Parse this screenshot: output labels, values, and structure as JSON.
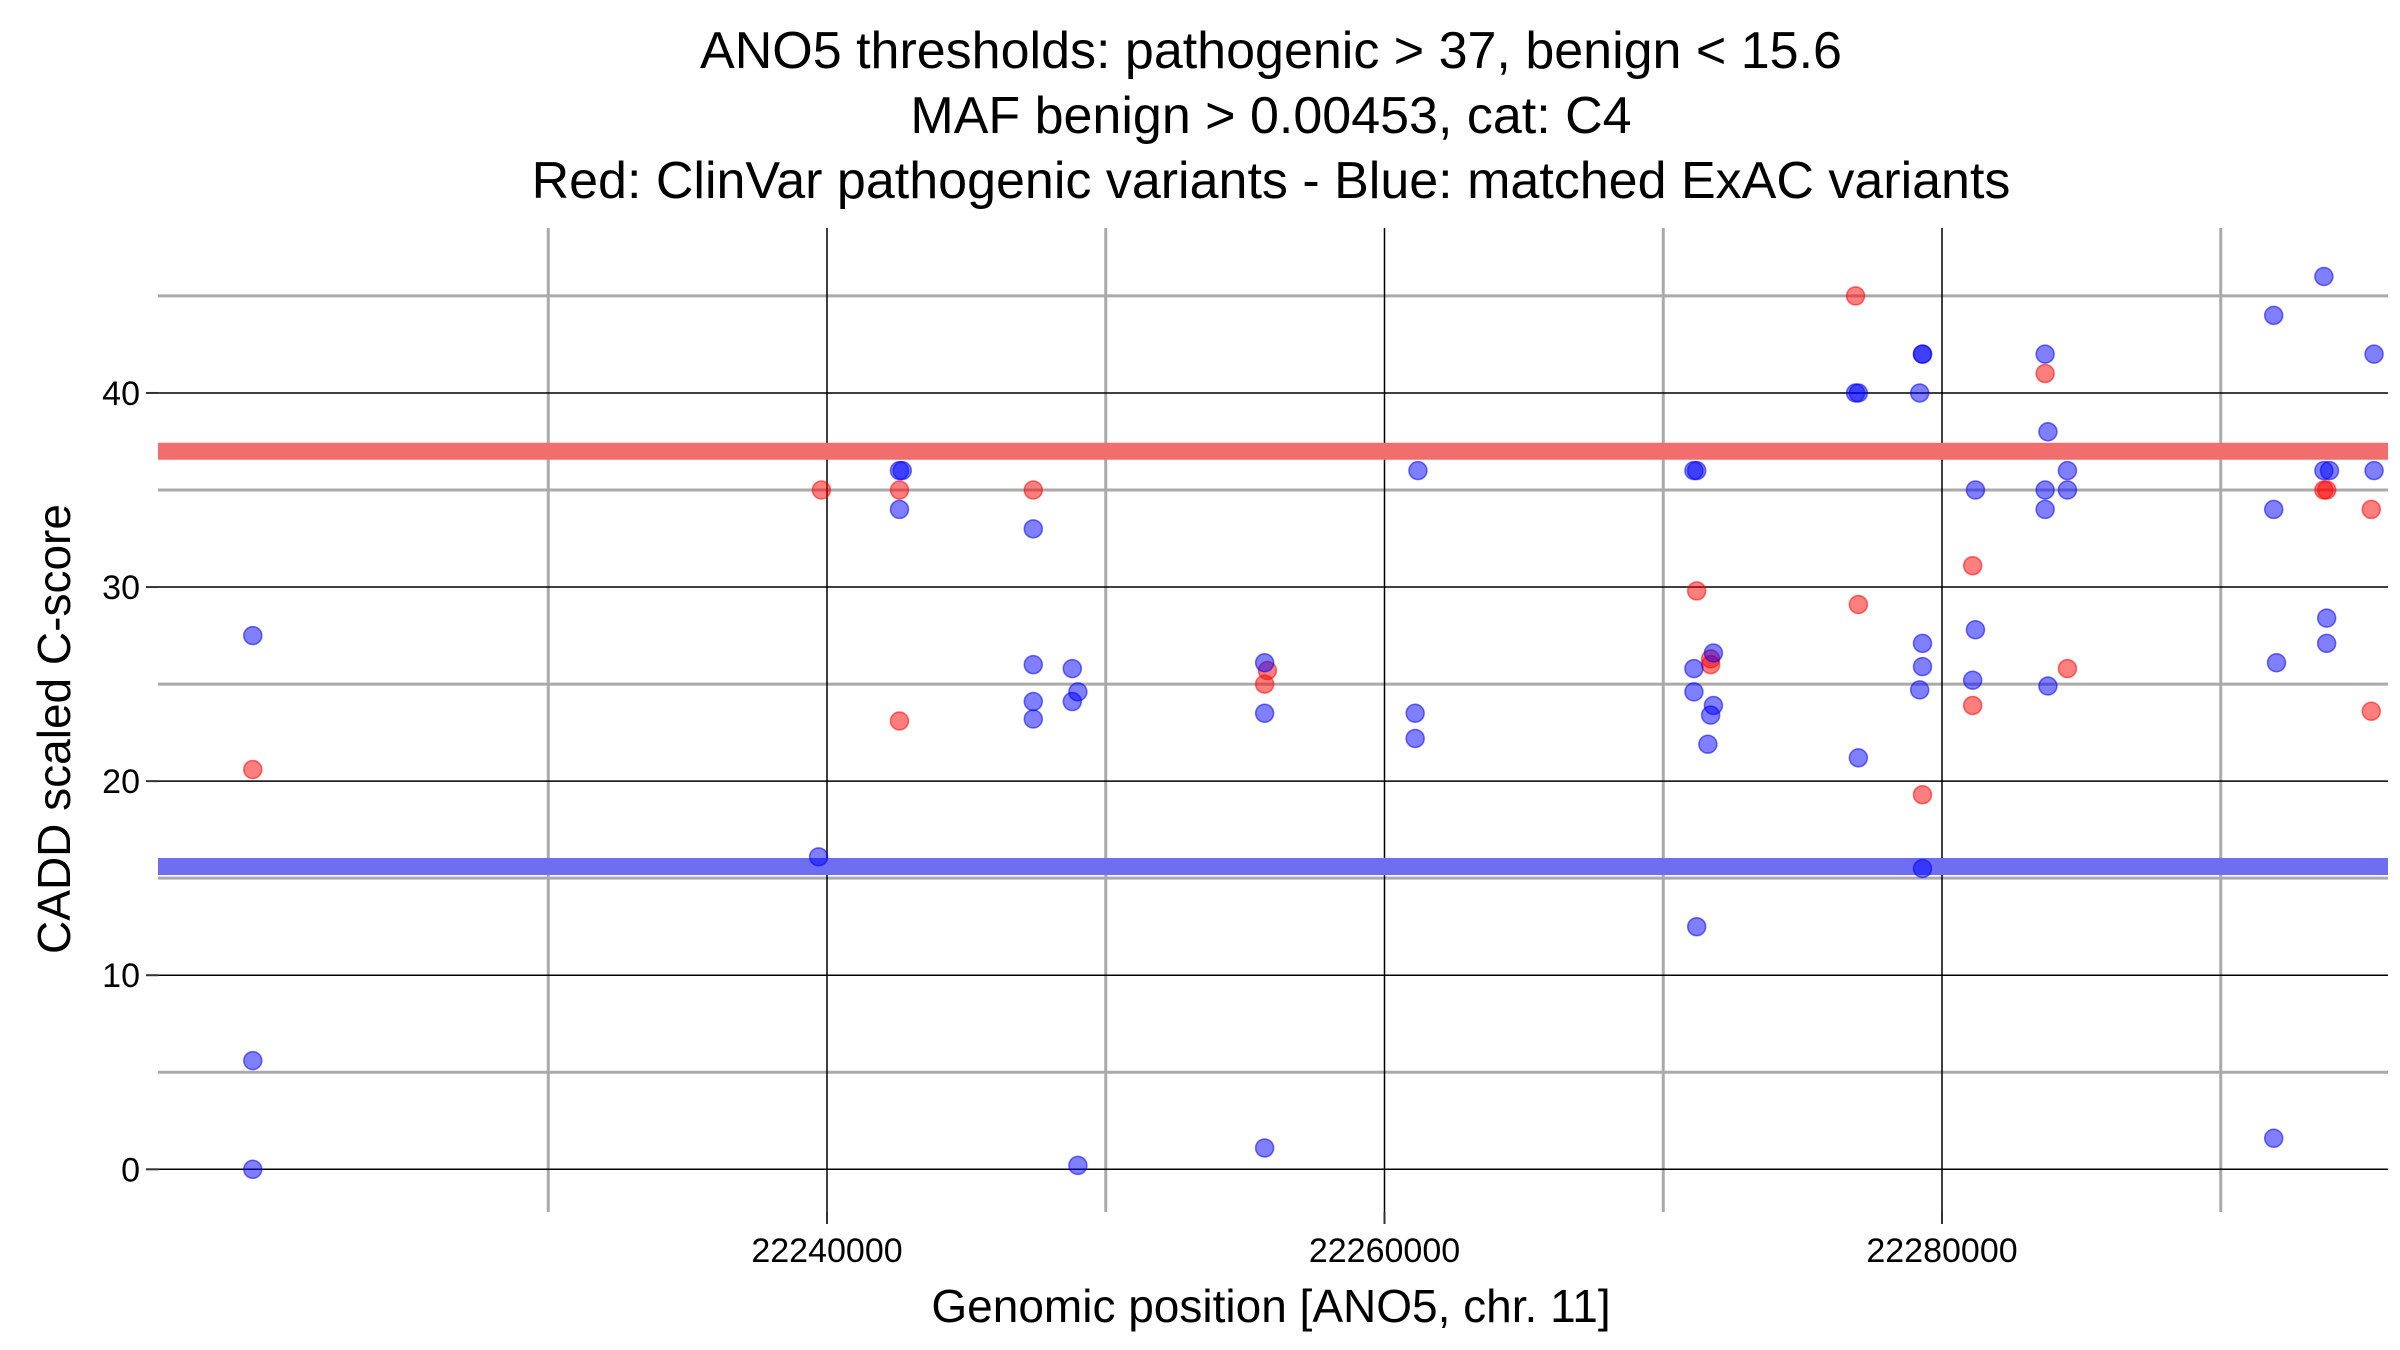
{
  "chart_data": {
    "type": "scatter",
    "title_lines": [
      "ANO5 thresholds: pathogenic > 37, benign < 15.6",
      "MAF benign > 0.00453, cat: C4",
      "Red: ClinVar pathogenic variants - Blue: matched ExAC variants"
    ],
    "xlabel": "Genomic position [ANO5, chr. 11]",
    "ylabel": "CADD scaled C-score",
    "xlim": [
      22216000,
      22296000
    ],
    "ylim": [
      -2.2,
      48.5
    ],
    "x_major_ticks": [
      22240000,
      22260000,
      22280000
    ],
    "x_major_tick_labels": [
      "22240000",
      "22260000",
      "22280000"
    ],
    "x_minor_gridlines": [
      22230000,
      22250000,
      22270000,
      22290000
    ],
    "y_major_ticks": [
      0,
      10,
      20,
      30,
      40
    ],
    "y_major_tick_labels": [
      "0",
      "10",
      "20",
      "30",
      "40"
    ],
    "y_minor_gridlines": [
      5,
      15,
      25,
      35,
      45
    ],
    "thresholds": [
      {
        "name": "pathogenic",
        "value": 37,
        "color": "#f26d6d"
      },
      {
        "name": "benign",
        "value": 15.6,
        "color": "#6e6ef2"
      }
    ],
    "colors": {
      "pathogenic": "#ff0000",
      "benign": "#0000ff"
    },
    "series": [
      {
        "name": "ClinVar pathogenic variants",
        "color": "#ff0000",
        "points": [
          [
            22219400,
            20.6
          ],
          [
            22239800,
            35.0
          ],
          [
            22242600,
            23.1
          ],
          [
            22242600,
            35.0
          ],
          [
            22247400,
            35.0
          ],
          [
            22255700,
            25.0
          ],
          [
            22255800,
            25.7
          ],
          [
            22271200,
            29.8
          ],
          [
            22271700,
            26.0
          ],
          [
            22271700,
            26.3
          ],
          [
            22276900,
            45.0
          ],
          [
            22277000,
            29.1
          ],
          [
            22279300,
            19.3
          ],
          [
            22281100,
            23.9
          ],
          [
            22281100,
            31.1
          ],
          [
            22283700,
            41.0
          ],
          [
            22284500,
            25.8
          ],
          [
            22293700,
            35.0
          ],
          [
            22293800,
            35.0
          ],
          [
            22295400,
            23.6
          ],
          [
            22295400,
            34.0
          ]
        ]
      },
      {
        "name": "matched ExAC variants",
        "color": "#0000ff",
        "points": [
          [
            22219400,
            27.5
          ],
          [
            22219400,
            5.6
          ],
          [
            22219400,
            0.0
          ],
          [
            22239700,
            16.1
          ],
          [
            22242600,
            36.0
          ],
          [
            22242700,
            36.0
          ],
          [
            22242600,
            34.0
          ],
          [
            22247400,
            33.0
          ],
          [
            22247400,
            26.0
          ],
          [
            22247400,
            24.1
          ],
          [
            22247400,
            23.2
          ],
          [
            22248800,
            25.8
          ],
          [
            22248800,
            24.1
          ],
          [
            22249000,
            24.6
          ],
          [
            22249000,
            0.2
          ],
          [
            22255700,
            26.1
          ],
          [
            22255700,
            23.5
          ],
          [
            22255700,
            1.1
          ],
          [
            22261200,
            36.0
          ],
          [
            22261100,
            23.5
          ],
          [
            22261100,
            22.2
          ],
          [
            22271100,
            36.0
          ],
          [
            22271200,
            36.0
          ],
          [
            22271100,
            25.8
          ],
          [
            22271100,
            24.6
          ],
          [
            22271200,
            12.5
          ],
          [
            22271800,
            26.6
          ],
          [
            22271800,
            23.9
          ],
          [
            22271700,
            23.4
          ],
          [
            22271600,
            21.9
          ],
          [
            22276900,
            40.0
          ],
          [
            22277000,
            40.0
          ],
          [
            22277000,
            21.2
          ],
          [
            22279300,
            42.0
          ],
          [
            22279300,
            42.0
          ],
          [
            22279200,
            40.0
          ],
          [
            22279300,
            27.1
          ],
          [
            22279300,
            25.9
          ],
          [
            22279200,
            24.7
          ],
          [
            22279300,
            15.5
          ],
          [
            22281200,
            35.0
          ],
          [
            22281200,
            27.8
          ],
          [
            22281100,
            25.2
          ],
          [
            22283700,
            42.0
          ],
          [
            22283800,
            38.0
          ],
          [
            22283700,
            35.0
          ],
          [
            22283700,
            34.0
          ],
          [
            22283800,
            24.9
          ],
          [
            22284500,
            36.0
          ],
          [
            22284500,
            35.0
          ],
          [
            22291900,
            44.0
          ],
          [
            22291900,
            34.0
          ],
          [
            22292000,
            26.1
          ],
          [
            22291900,
            1.6
          ],
          [
            22293700,
            46.0
          ],
          [
            22293700,
            36.0
          ],
          [
            22293900,
            36.0
          ],
          [
            22293800,
            28.4
          ],
          [
            22293800,
            27.1
          ],
          [
            22295500,
            42.0
          ],
          [
            22295500,
            36.0
          ]
        ]
      }
    ]
  }
}
